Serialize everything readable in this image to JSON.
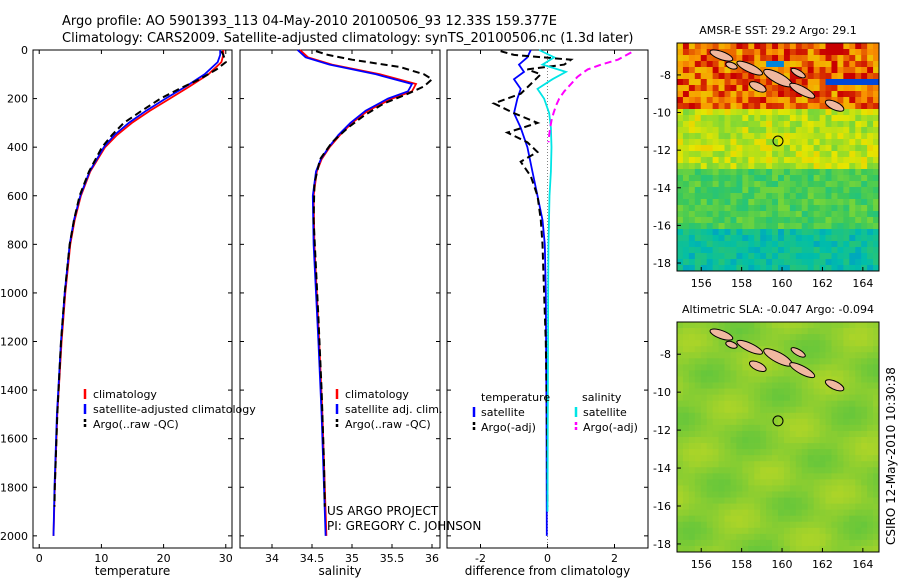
{
  "header": {
    "line1": "Argo profile: AO 5901393_113 04-May-2010 20100506_93 12.33S 159.377E",
    "line2": "Climatology: CARS2009. Satellite-adjusted climatology: synTS_20100506.nc (1.3d later)"
  },
  "colors": {
    "climatology": "#ff0000",
    "satellite": "#0000ff",
    "argo": "#000000",
    "sal_satellite": "#00e5e5",
    "sal_argo": "#ff00ff"
  },
  "project": {
    "line1": "US ARGO PROJECT",
    "line2": "PI: GREGORY C. JOHNSON"
  },
  "side_caption": "CSIRO 12-May-2010 10:30:38",
  "chart_data": [
    {
      "type": "line",
      "id": "temperature",
      "xlabel": "temperature",
      "xlim": [
        -1,
        31
      ],
      "ylim": [
        0,
        2050
      ],
      "xticks": [
        "0",
        "10",
        "20",
        "30"
      ],
      "yticks": [
        "0",
        "200",
        "400",
        "600",
        "800",
        "1000",
        "1200",
        "1400",
        "1600",
        "1800",
        "2000"
      ],
      "legend": [
        "climatology",
        "satellite-adjusted climatology",
        "Argo(..raw -QC)"
      ],
      "series": [
        {
          "name": "climatology",
          "y": [
            0,
            20,
            50,
            100,
            150,
            200,
            250,
            300,
            350,
            400,
            500,
            600,
            700,
            800,
            1000,
            1200,
            1500,
            1800,
            2000
          ],
          "x": [
            29.6,
            29.6,
            29.3,
            27.2,
            24.2,
            21.0,
            17.8,
            14.9,
            12.5,
            10.6,
            8.2,
            6.7,
            5.7,
            5.0,
            4.2,
            3.6,
            2.9,
            2.5,
            2.3
          ]
        },
        {
          "name": "satellite",
          "y": [
            0,
            20,
            50,
            100,
            150,
            200,
            250,
            300,
            350,
            400,
            500,
            600,
            700,
            800,
            1000,
            1200,
            1500,
            1800,
            2000
          ],
          "x": [
            29.1,
            29.1,
            28.7,
            26.6,
            23.6,
            20.3,
            17.2,
            14.4,
            12.1,
            10.4,
            8.1,
            6.6,
            5.6,
            4.9,
            4.1,
            3.5,
            2.85,
            2.45,
            2.3
          ]
        },
        {
          "name": "Argo",
          "y": [
            5,
            20,
            50,
            80,
            120,
            160,
            200,
            250,
            300,
            350,
            400,
            500,
            600,
            700,
            800,
            1000,
            1200,
            1500,
            1800,
            1880
          ],
          "x": [
            29.3,
            29.6,
            30.0,
            28.5,
            25.8,
            22.5,
            19.5,
            16.5,
            13.6,
            11.7,
            10.1,
            8.0,
            6.5,
            5.6,
            4.9,
            4.1,
            3.5,
            2.9,
            2.5,
            2.45
          ]
        }
      ]
    },
    {
      "type": "line",
      "id": "salinity",
      "xlabel": "salinity",
      "xlim": [
        33.6,
        36.1
      ],
      "ylim": [
        0,
        2050
      ],
      "xticks": [
        "34",
        "34.5",
        "35",
        "35.5",
        "36"
      ],
      "legend": [
        "climatology",
        "satellite adj. clim.",
        "Argo(..raw -QC)"
      ],
      "series": [
        {
          "name": "climatology",
          "y": [
            0,
            30,
            60,
            100,
            140,
            170,
            200,
            250,
            300,
            350,
            400,
            450,
            500,
            600,
            800,
            1000,
            1200,
            1500,
            1800,
            2000
          ],
          "x": [
            34.35,
            34.45,
            34.75,
            35.35,
            35.8,
            35.75,
            35.5,
            35.2,
            35.0,
            34.85,
            34.72,
            34.62,
            34.56,
            34.52,
            34.53,
            34.56,
            34.59,
            34.63,
            34.66,
            34.68
          ]
        },
        {
          "name": "satellite",
          "y": [
            0,
            30,
            60,
            100,
            140,
            170,
            200,
            250,
            300,
            350,
            400,
            450,
            500,
            600,
            800,
            1000,
            1200,
            1500,
            1800,
            2000
          ],
          "x": [
            34.32,
            34.42,
            34.72,
            35.3,
            35.75,
            35.7,
            35.45,
            35.17,
            34.98,
            34.83,
            34.71,
            34.61,
            34.55,
            34.51,
            34.52,
            34.55,
            34.58,
            34.62,
            34.65,
            34.67
          ]
        },
        {
          "name": "Argo",
          "y": [
            5,
            20,
            40,
            70,
            100,
            120,
            150,
            180,
            220,
            270,
            320,
            380,
            450,
            550,
            700,
            900,
            1100,
            1400,
            1700,
            1880
          ],
          "x": [
            34.55,
            34.7,
            35.0,
            35.6,
            35.9,
            36.0,
            35.9,
            35.7,
            35.4,
            35.15,
            34.95,
            34.75,
            34.6,
            34.53,
            34.52,
            34.55,
            34.58,
            34.62,
            34.65,
            34.66
          ]
        }
      ]
    },
    {
      "type": "line",
      "id": "difference",
      "xlabel": "difference from climatology",
      "xlim": [
        -3,
        3
      ],
      "ylim": [
        0,
        2050
      ],
      "xticks": [
        "-2",
        "0",
        "2"
      ],
      "legend_titles": [
        "temperature",
        "salinity"
      ],
      "legend": [
        "satellite",
        "Argo(-adj)",
        "satellite",
        "Argo(-adj)"
      ],
      "series": [
        {
          "name": "temperature satellite",
          "y": [
            0,
            30,
            60,
            90,
            120,
            160,
            200,
            260,
            320,
            400,
            500,
            600,
            700,
            800,
            1000,
            1500,
            2000
          ],
          "x": [
            -0.5,
            -0.6,
            -0.85,
            -0.7,
            -1.0,
            -0.8,
            -0.9,
            -1.0,
            -0.8,
            -0.6,
            -0.45,
            -0.3,
            -0.15,
            -0.08,
            -0.05,
            -0.03,
            -0.02
          ]
        },
        {
          "name": "temperature Argo",
          "y": [
            5,
            20,
            40,
            60,
            80,
            100,
            140,
            180,
            220,
            260,
            300,
            340,
            380,
            420,
            460,
            520,
            600,
            700,
            800,
            1000,
            1200,
            1500,
            1880
          ],
          "x": [
            -1.4,
            -1.0,
            0.7,
            0.5,
            -0.6,
            -0.2,
            -0.5,
            -0.8,
            -1.6,
            -1.0,
            -0.3,
            -1.2,
            -0.6,
            -0.3,
            -0.8,
            -0.5,
            -0.3,
            -0.2,
            -0.15,
            -0.1,
            -0.05,
            -0.02,
            0.0
          ]
        },
        {
          "name": "salinity satellite",
          "y": [
            0,
            30,
            60,
            90,
            120,
            160,
            200,
            260,
            320,
            400,
            500,
            600,
            800,
            1000,
            1500,
            1900
          ],
          "x": [
            -0.25,
            0.2,
            -0.15,
            0.55,
            0.15,
            -0.3,
            -0.1,
            0.05,
            0.1,
            0.12,
            0.1,
            0.06,
            0.03,
            0.02,
            0.01,
            0.0
          ]
        },
        {
          "name": "salinity Argo",
          "y": [
            10,
            40,
            60,
            80,
            110,
            140,
            170,
            200,
            230,
            260,
            290,
            320,
            350,
            380
          ],
          "x": [
            2.5,
            2.1,
            1.6,
            1.2,
            0.9,
            0.7,
            0.5,
            0.35,
            0.25,
            0.18,
            0.12,
            0.08,
            0.05,
            0.03
          ]
        }
      ]
    },
    {
      "type": "heatmap",
      "id": "sst-map",
      "title": "AMSR-E SST: 29.2  Argo: 29.1",
      "xticks": [
        "156",
        "158",
        "160",
        "162",
        "164"
      ],
      "yticks": [
        "-8",
        "-10",
        "-12",
        "-14",
        "-16",
        "-18"
      ]
    },
    {
      "type": "heatmap",
      "id": "sla-map",
      "title": "Altimetric SLA: -0.047  Argo: -0.094",
      "xticks": [
        "156",
        "158",
        "160",
        "162",
        "164"
      ],
      "yticks": [
        "-8",
        "-10",
        "-12",
        "-14",
        "-16",
        "-18"
      ]
    }
  ]
}
